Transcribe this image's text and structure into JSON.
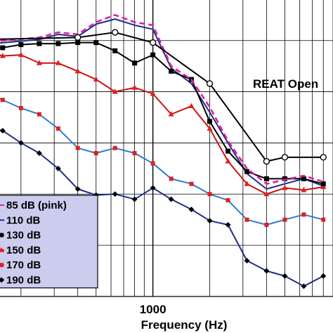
{
  "chart_data": {
    "type": "line",
    "xlabel": "Frequency (Hz)",
    "x_scale": "log",
    "xlim": [
      125,
      9000
    ],
    "ylim": [
      -15,
      13
    ],
    "x_tick_labels": [
      {
        "value": 1000,
        "label": "1000"
      }
    ],
    "x_gridlines": [
      200,
      300,
      400,
      500,
      600,
      700,
      800,
      900,
      1000,
      2000,
      3000,
      4000,
      5000,
      6000,
      7000,
      8000,
      9000
    ],
    "y_gridlines": [
      -15,
      -10,
      -5,
      0,
      5,
      10,
      15
    ],
    "grid": true,
    "annotation": "REAT Open",
    "legend_position": "bottom-left",
    "series": [
      {
        "name": "85 dB (pink)",
        "color": "#e0219a",
        "dash": true,
        "marker": "none",
        "points": [
          [
            125,
            9.8
          ],
          [
            250,
            10.3
          ],
          [
            315,
            10.8
          ],
          [
            400,
            10.6
          ],
          [
            500,
            11.8
          ],
          [
            630,
            12.5
          ],
          [
            800,
            11.8
          ],
          [
            1000,
            11.5
          ],
          [
            1250,
            7.5
          ],
          [
            1600,
            6.2
          ],
          [
            2000,
            3.5
          ],
          [
            2500,
            0.2
          ],
          [
            3150,
            -2.5
          ],
          [
            4000,
            -4.0
          ],
          [
            5000,
            -3.6
          ],
          [
            6300,
            -3.2
          ],
          [
            8000,
            -3.8
          ]
        ]
      },
      {
        "name": "110 dB",
        "color": "#1e2d8f",
        "dash": false,
        "marker": "none",
        "points": [
          [
            125,
            9.6
          ],
          [
            250,
            10.1
          ],
          [
            315,
            10.6
          ],
          [
            400,
            10.4
          ],
          [
            500,
            11.6
          ],
          [
            630,
            12.1
          ],
          [
            800,
            11.5
          ],
          [
            1000,
            11.1
          ],
          [
            1250,
            7.3
          ],
          [
            1600,
            5.8
          ],
          [
            2000,
            3.0
          ],
          [
            2500,
            0.0
          ],
          [
            3150,
            -3.0
          ],
          [
            4000,
            -4.5
          ],
          [
            5000,
            -4.0
          ],
          [
            6300,
            -3.5
          ],
          [
            8000,
            -4.2
          ]
        ]
      },
      {
        "name": "130 dB",
        "color": "#000000",
        "dash": false,
        "marker": "square",
        "points": [
          [
            125,
            9.2
          ],
          [
            160,
            9.3
          ],
          [
            200,
            9.6
          ],
          [
            250,
            9.7
          ],
          [
            315,
            9.7
          ],
          [
            400,
            9.8
          ],
          [
            500,
            9.8
          ],
          [
            630,
            9.0
          ],
          [
            800,
            7.8
          ],
          [
            1000,
            8.6
          ],
          [
            1250,
            7.0
          ],
          [
            1600,
            6.2
          ],
          [
            2000,
            2.1
          ],
          [
            2500,
            -0.8
          ],
          [
            3150,
            -2.8
          ],
          [
            4000,
            -3.5
          ],
          [
            5000,
            -3.5
          ],
          [
            6300,
            -3.5
          ],
          [
            8000,
            -4.0
          ]
        ]
      },
      {
        "name": "150 dB",
        "color": "#cc1111",
        "dash": false,
        "marker": "triangle",
        "points": [
          [
            125,
            8.9
          ],
          [
            160,
            8.5
          ],
          [
            200,
            8.6
          ],
          [
            250,
            7.8
          ],
          [
            315,
            7.8
          ],
          [
            400,
            7.0
          ],
          [
            500,
            6.2
          ],
          [
            630,
            5.0
          ],
          [
            800,
            5.4
          ],
          [
            1000,
            4.8
          ],
          [
            1250,
            2.8
          ],
          [
            1600,
            3.6
          ],
          [
            2000,
            1.4
          ],
          [
            2500,
            -1.8
          ],
          [
            3150,
            -4.0
          ],
          [
            4000,
            -5.0
          ],
          [
            5000,
            -4.4
          ],
          [
            6300,
            -4.6
          ],
          [
            8000,
            -4.3
          ]
        ]
      },
      {
        "name": "170 dB",
        "color": "#2e7bcf",
        "dash": false,
        "marker": "square_red",
        "points": [
          [
            125,
            5.0
          ],
          [
            160,
            4.2
          ],
          [
            200,
            3.4
          ],
          [
            250,
            2.8
          ],
          [
            315,
            1.4
          ],
          [
            400,
            -0.5
          ],
          [
            500,
            -1.0
          ],
          [
            630,
            -0.5
          ],
          [
            800,
            -1.0
          ],
          [
            1000,
            -2.0
          ],
          [
            1250,
            -3.5
          ],
          [
            1600,
            -4.0
          ],
          [
            2000,
            -5.0
          ],
          [
            2500,
            -5.6
          ],
          [
            3150,
            -7.5
          ],
          [
            4000,
            -8.0
          ],
          [
            5000,
            -7.5
          ],
          [
            6300,
            -7.0
          ],
          [
            8000,
            -7.5
          ]
        ]
      },
      {
        "name": "190 dB",
        "color": "#1e2d8f",
        "dash": false,
        "marker": "diamond",
        "points": [
          [
            125,
            1.6
          ],
          [
            160,
            1.2
          ],
          [
            200,
            0.0
          ],
          [
            250,
            -1.0
          ],
          [
            315,
            -2.5
          ],
          [
            400,
            -4.5
          ],
          [
            500,
            -5.1
          ],
          [
            630,
            -5.0
          ],
          [
            800,
            -5.5
          ],
          [
            1000,
            -4.4
          ],
          [
            1250,
            -5.5
          ],
          [
            1600,
            -6.5
          ],
          [
            2000,
            -7.6
          ],
          [
            2500,
            -8.0
          ],
          [
            3150,
            -11.5
          ],
          [
            4000,
            -12.5
          ],
          [
            5000,
            -13.0
          ],
          [
            6300,
            -14.0
          ],
          [
            8000,
            -13.0
          ]
        ]
      },
      {
        "name": "REAT Open",
        "color": "#000000",
        "dash": false,
        "marker": "circle",
        "legend": false,
        "points": [
          [
            125,
            10.1
          ],
          [
            400,
            10.3
          ],
          [
            630,
            10.8
          ],
          [
            1000,
            9.8
          ],
          [
            2000,
            5.8
          ],
          [
            4000,
            -1.8
          ],
          [
            5000,
            -1.4
          ],
          [
            8000,
            -1.4
          ]
        ]
      }
    ],
    "legend": [
      "85 dB (pink)",
      "110 dB",
      "130 dB",
      "150 dB",
      "170 dB",
      "190 dB"
    ]
  }
}
